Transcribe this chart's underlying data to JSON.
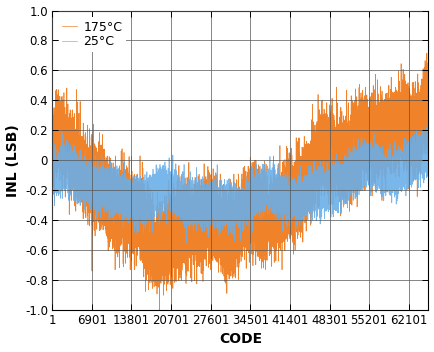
{
  "title": "",
  "xlabel": "CODE",
  "ylabel": "INL (LSB)",
  "xlim": [
    1,
    65535
  ],
  "ylim": [
    -1.0,
    1.0
  ],
  "yticks": [
    -1.0,
    -0.8,
    -0.6,
    -0.4,
    -0.2,
    0.0,
    0.2,
    0.4,
    0.6,
    0.8,
    1.0
  ],
  "ytick_labels": [
    "-1.0",
    "-0.8",
    "-0.6",
    "-0.4",
    "-0.2",
    "0",
    "0.2",
    "0.4",
    "0.6",
    "0.8",
    "1.0"
  ],
  "xtick_values": [
    1,
    6901,
    13801,
    20701,
    27601,
    34501,
    41401,
    48301,
    55201,
    62101
  ],
  "xtick_labels": [
    "1",
    "6901",
    "13801",
    "20701",
    "27601",
    "34501",
    "41401",
    "48301",
    "55201",
    "62101"
  ],
  "color_25": "#6AAEE8",
  "color_175": "#F0822A",
  "legend_labels": [
    "25°C",
    "175°C"
  ],
  "n_points": 65535,
  "background_color": "#ffffff",
  "label_fontsize": 10,
  "tick_fontsize": 8.5
}
